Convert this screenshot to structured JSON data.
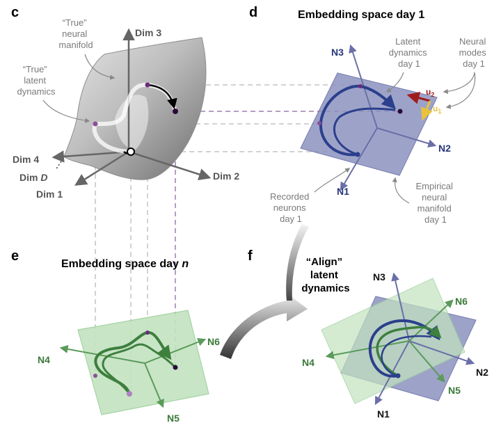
{
  "panels": {
    "c": {
      "letter": "c",
      "true_manifold": [
        "“True”",
        "neural",
        "manifold"
      ],
      "true_dynamics": [
        "“True”",
        "latent",
        "dynamics"
      ],
      "axes": {
        "dim3": "Dim 3",
        "dim2": "Dim 2",
        "dim1": "Dim 1",
        "dim4": "Dim 4",
        "dimD_prefix": "Dim ",
        "dimD_var": "D"
      }
    },
    "d": {
      "letter": "d",
      "title": "Embedding space day 1",
      "latent_label": [
        "Latent",
        "dynamics",
        "day 1"
      ],
      "modes_label": [
        "Neural",
        "modes",
        "day 1"
      ],
      "u2": "u",
      "u2_sub": "2",
      "u1": "u",
      "u1_sub": "1",
      "n3": "N3",
      "n2": "N2",
      "n1": "N1",
      "recorded_label": [
        "Recorded",
        "neurons",
        "day 1"
      ],
      "empirical_label": [
        "Empirical",
        "neural",
        "manifold",
        "day 1"
      ]
    },
    "e": {
      "letter": "e",
      "title_prefix": "Embedding space day ",
      "title_var": "n",
      "n4": "N4",
      "n5": "N5",
      "n6": "N6"
    },
    "f": {
      "letter": "f",
      "align_label": [
        "“Align”",
        "latent",
        "dynamics"
      ],
      "n3": "N3",
      "n6": "N6",
      "n4": "N4",
      "n2": "N2",
      "n5": "N5",
      "n1": "N1"
    }
  },
  "colors": {
    "blue_plane": "#8d94bf",
    "blue_line": "#2b3f8c",
    "green_plane": "#c3e3c0",
    "green_line": "#3e7f3e",
    "purple_dot": "#6b2b7a",
    "dashed_grey": "#a6a6a6",
    "dashed_purple": "#6b3b8b"
  }
}
